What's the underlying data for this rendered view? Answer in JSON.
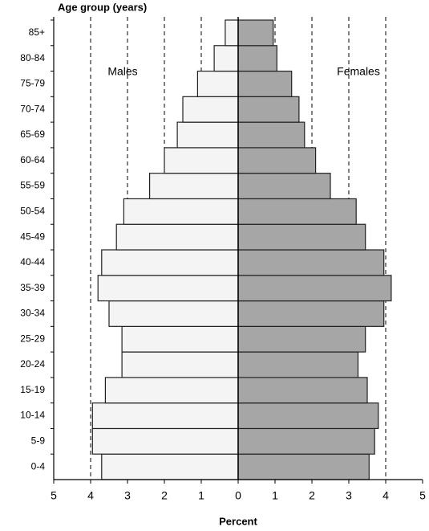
{
  "chart_data": {
    "type": "pyramid",
    "title": "Age group (years)",
    "x_label": "Percent",
    "categories": [
      "0-4",
      "5-9",
      "10-14",
      "15-19",
      "20-24",
      "25-29",
      "30-34",
      "35-39",
      "40-44",
      "45-49",
      "50-54",
      "55-59",
      "60-64",
      "65-69",
      "70-74",
      "75-79",
      "80-84",
      "85+"
    ],
    "series": [
      {
        "name": "Males",
        "color": "#f4f4f4",
        "values": [
          -3.7,
          -3.95,
          -3.95,
          -3.6,
          -3.15,
          -3.15,
          -3.5,
          -3.8,
          -3.7,
          -3.3,
          -3.1,
          -2.4,
          -2.0,
          -1.65,
          -1.5,
          -1.1,
          -0.65,
          -0.35
        ]
      },
      {
        "name": "Females",
        "color": "#a6a6a6",
        "values": [
          3.55,
          3.7,
          3.8,
          3.5,
          3.25,
          3.45,
          3.95,
          4.15,
          3.95,
          3.45,
          3.2,
          2.5,
          2.1,
          1.8,
          1.65,
          1.45,
          1.05,
          0.95
        ]
      }
    ],
    "xlim": [
      -5,
      5
    ],
    "xticks": [
      {
        "value": -5,
        "label": "5"
      },
      {
        "value": -4,
        "label": "4"
      },
      {
        "value": -3,
        "label": "3"
      },
      {
        "value": -2,
        "label": "2"
      },
      {
        "value": -1,
        "label": "1"
      },
      0,
      1,
      2,
      3,
      4,
      5
    ],
    "grid": true
  }
}
